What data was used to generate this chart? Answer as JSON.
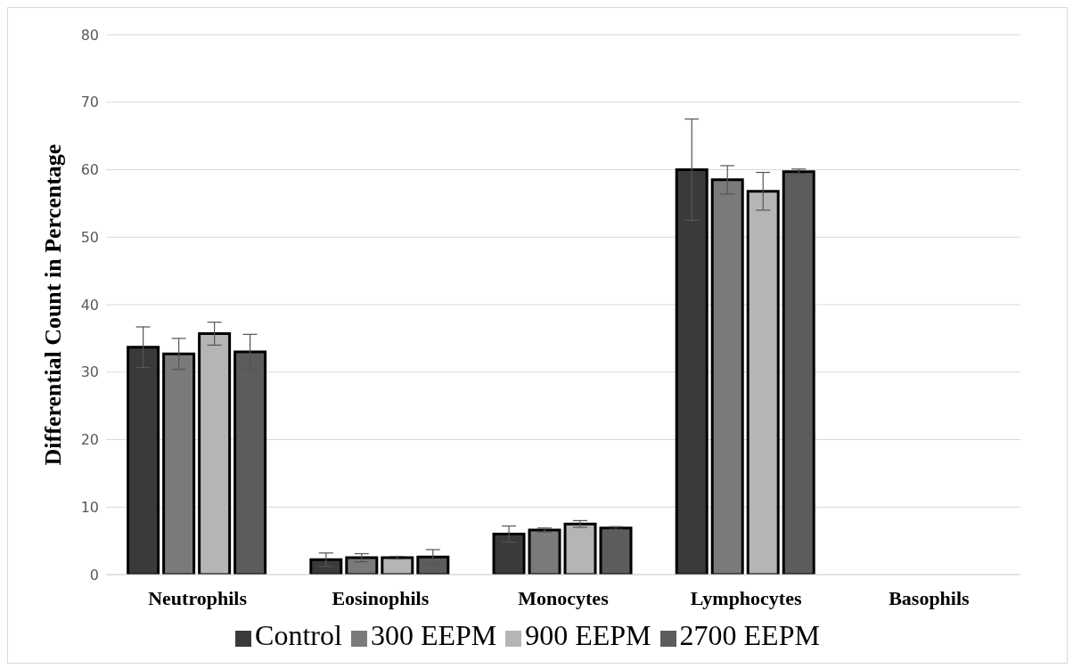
{
  "chart_data": {
    "type": "bar",
    "ylabel": "Differential Count  in Percentage",
    "categories": [
      "Neutrophils",
      "Eosinophils",
      "Monocytes",
      "Lymphocytes",
      "Basophils"
    ],
    "series": [
      {
        "name": "Control",
        "color": "#3a3a3a",
        "values": [
          33.7,
          2.2,
          6.0,
          60.0,
          0
        ],
        "errors": [
          3.0,
          1.0,
          1.2,
          7.5,
          null
        ]
      },
      {
        "name": "300 EEPM",
        "color": "#7a7a7a",
        "values": [
          32.7,
          2.5,
          6.6,
          58.5,
          0
        ],
        "errors": [
          2.3,
          0.6,
          0.3,
          2.1,
          null
        ]
      },
      {
        "name": "900 EEPM",
        "color": "#b5b5b5",
        "values": [
          35.7,
          2.5,
          7.5,
          56.8,
          0
        ],
        "errors": [
          1.7,
          0.2,
          0.5,
          2.8,
          null
        ]
      },
      {
        "name": "2700 EEPM",
        "color": "#5c5c5c",
        "values": [
          33.0,
          2.6,
          6.9,
          59.7,
          0
        ],
        "errors": [
          2.6,
          1.1,
          0.2,
          0.4,
          null
        ]
      }
    ],
    "ylim": [
      0,
      80
    ],
    "yticks": [
      0,
      10,
      20,
      30,
      40,
      50,
      60,
      70,
      80
    ],
    "grid": "y",
    "legend": "bottom"
  }
}
